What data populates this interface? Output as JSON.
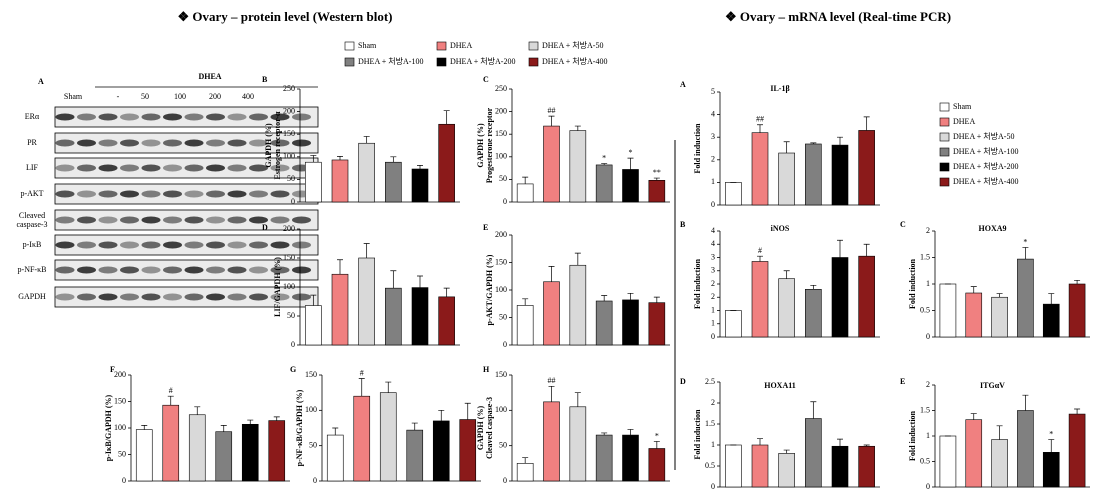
{
  "headings": {
    "protein": "❖  Ovary – protein level (Western blot)",
    "mrna": "❖  Ovary – mRNA level (Real-time PCR)"
  },
  "legend": [
    {
      "name": "Sham",
      "color": "#ffffff"
    },
    {
      "name": "DHEA",
      "color": "#f08080"
    },
    {
      "name": "DHEA + 처방A-50",
      "color": "#d9d9d9"
    },
    {
      "name": "DHEA + 처방A-100",
      "color": "#808080"
    },
    {
      "name": "DHEA + 처방A-200",
      "color": "#000000"
    },
    {
      "name": "DHEA + 처방A-400",
      "color": "#8b1a1a"
    }
  ],
  "blot": {
    "panel": "A",
    "group": "DHEA",
    "lanes": [
      "Sham",
      "-",
      "50",
      "100",
      "200",
      "400"
    ],
    "rows": [
      "ERα",
      "PR",
      "LIF",
      "p-AKT",
      [
        "Cleaved",
        "caspase-3"
      ],
      "p-IκB",
      "p-NF-κB",
      "GAPDH"
    ]
  },
  "chart_data": [
    {
      "type": "bar",
      "panel": "B",
      "ylabel": [
        "Estrogen receptor-α",
        "GAPDH (%)"
      ],
      "values": [
        88,
        93,
        130,
        88,
        73,
        172
      ],
      "errors": [
        15,
        8,
        15,
        12,
        8,
        30
      ],
      "ylim": [
        0,
        250
      ],
      "yticks": [
        0,
        50,
        100,
        150,
        200,
        250
      ]
    },
    {
      "type": "bar",
      "panel": "C",
      "ylabel": [
        "Progesterone receptor",
        "GAPDH (%)"
      ],
      "values": [
        40,
        168,
        158,
        82,
        72,
        48
      ],
      "errors": [
        15,
        22,
        10,
        3,
        25,
        5
      ],
      "annotations": [
        null,
        "##",
        null,
        "*",
        "*",
        "**"
      ],
      "ylim": [
        0,
        250
      ],
      "yticks": [
        0,
        50,
        100,
        150,
        200,
        250
      ]
    },
    {
      "type": "bar",
      "panel": "D",
      "ylabel": [
        "LIF/GAPDH (%)"
      ],
      "values": [
        68,
        122,
        150,
        98,
        99,
        83
      ],
      "errors": [
        18,
        25,
        25,
        30,
        20,
        15
      ],
      "ylim": [
        0,
        200
      ],
      "yticks": [
        0,
        50,
        100,
        150,
        200
      ]
    },
    {
      "type": "bar",
      "panel": "E",
      "ylabel": [
        "p-AKT/GAPDH (%)"
      ],
      "values": [
        72,
        115,
        145,
        80,
        82,
        77
      ],
      "errors": [
        12,
        28,
        22,
        10,
        12,
        10
      ],
      "ylim": [
        0,
        200
      ],
      "yticks": [
        0,
        50,
        100,
        150,
        200
      ]
    },
    {
      "type": "bar",
      "panel": "F",
      "ylabel": [
        "p-IκB/GAPDH (%)"
      ],
      "values": [
        97,
        143,
        125,
        93,
        107,
        114
      ],
      "errors": [
        8,
        17,
        15,
        12,
        8,
        7
      ],
      "annotations": [
        null,
        "#",
        null,
        null,
        null,
        null
      ],
      "ylim": [
        0,
        200
      ],
      "yticks": [
        0,
        50,
        100,
        150,
        200
      ]
    },
    {
      "type": "bar",
      "panel": "G",
      "ylabel": [
        "p-NF-κB/GAPDH (%)"
      ],
      "values": [
        65,
        120,
        125,
        72,
        85,
        87
      ],
      "errors": [
        10,
        25,
        15,
        10,
        15,
        23
      ],
      "annotations": [
        null,
        "#",
        null,
        null,
        null,
        null
      ],
      "ylim": [
        0,
        150
      ],
      "yticks": [
        0,
        50,
        100,
        150
      ]
    },
    {
      "type": "bar",
      "panel": "H",
      "ylabel": [
        "Cleaved caspase-3",
        "GAPDH (%)"
      ],
      "values": [
        25,
        112,
        105,
        65,
        65,
        46
      ],
      "errors": [
        8,
        22,
        20,
        3,
        8,
        10
      ],
      "annotations": [
        null,
        "##",
        null,
        null,
        null,
        "*"
      ],
      "ylim": [
        0,
        150
      ],
      "yticks": [
        0,
        50,
        100,
        150
      ]
    },
    {
      "type": "bar",
      "panel": "A",
      "title": "IL-1β",
      "ylabel": "Fold induction",
      "values": [
        1.0,
        3.2,
        2.3,
        2.7,
        2.65,
        3.3
      ],
      "errors": [
        0,
        0.35,
        0.5,
        0.05,
        0.35,
        0.6
      ],
      "annotations": [
        null,
        "##",
        null,
        null,
        null,
        null
      ],
      "ylim": [
        0,
        5
      ],
      "yticks": [
        0,
        1,
        2,
        3,
        4,
        5
      ]
    },
    {
      "type": "bar",
      "panel": "B",
      "title": "iNOS",
      "ylabel": "Fold induction",
      "values": [
        1.0,
        2.85,
        2.2,
        1.8,
        3.0,
        3.05
      ],
      "errors": [
        0,
        0.2,
        0.3,
        0.15,
        0.65,
        0.45
      ],
      "annotations": [
        null,
        "#",
        null,
        null,
        null,
        null
      ],
      "ylim": [
        0,
        4
      ],
      "yticks": [
        0,
        {
          "value": 0.5,
          "label": "1"
        },
        1,
        {
          "value": 1.5,
          "label": "2"
        },
        2,
        {
          "value": 2.5,
          "label": "3"
        },
        3,
        {
          "value": 3.5,
          "label": "4"
        },
        4
      ]
    },
    {
      "type": "bar",
      "panel": "C",
      "title": "HOXA9",
      "ylabel": "Fold induction",
      "values": [
        1.0,
        0.83,
        0.75,
        1.47,
        0.62,
        1.0
      ],
      "errors": [
        0,
        0.12,
        0.07,
        0.22,
        0.2,
        0.07
      ],
      "annotations": [
        null,
        null,
        null,
        "*",
        null,
        null
      ],
      "ylim": [
        0,
        2
      ],
      "yticks": [
        0,
        0.5,
        1,
        1.5,
        2
      ]
    },
    {
      "type": "bar",
      "panel": "D",
      "title": "HOXA11",
      "ylabel": "Fold induction",
      "values": [
        1.0,
        1.0,
        0.8,
        1.63,
        0.97,
        0.97
      ],
      "errors": [
        0,
        0.15,
        0.08,
        0.4,
        0.17,
        0.03
      ],
      "ylim": [
        0,
        2.5
      ],
      "yticks": [
        0,
        0.5,
        1,
        1.5,
        2,
        2.5
      ]
    },
    {
      "type": "bar",
      "panel": "E",
      "title": "ITGαV",
      "ylabel": "Fold induction",
      "values": [
        1.0,
        1.32,
        0.93,
        1.5,
        0.68,
        1.43
      ],
      "errors": [
        0,
        0.12,
        0.27,
        0.3,
        0.25,
        0.1
      ],
      "annotations": [
        null,
        null,
        null,
        null,
        "*",
        null
      ],
      "ylim": [
        0,
        2
      ],
      "yticks": [
        0,
        0.5,
        1,
        1.5,
        2
      ]
    }
  ]
}
